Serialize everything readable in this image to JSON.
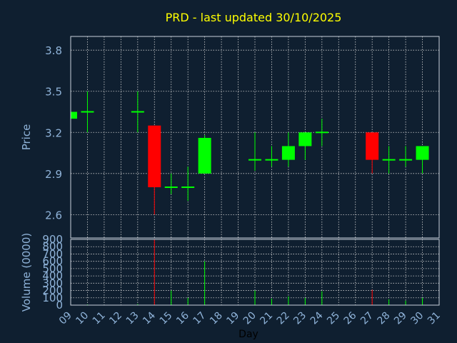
{
  "chart_data": {
    "type": "candlestick",
    "title": "PRD - last updated 30/10/2025",
    "xlabel": "Day",
    "price_panel": {
      "ylabel": "Price",
      "yticks": [
        "2.6",
        "2.9",
        "3.2",
        "3.5",
        "3.8"
      ],
      "ylim": [
        2.43,
        3.9
      ]
    },
    "volume_panel": {
      "ylabel": "Volume (0000)",
      "yticks": [
        "0",
        "100",
        "200",
        "300",
        "400",
        "500",
        "600",
        "700",
        "800",
        "900"
      ],
      "ylim": [
        0,
        900
      ]
    },
    "xticks": [
      "09",
      "10",
      "11",
      "12",
      "13",
      "14",
      "15",
      "16",
      "17",
      "18",
      "19",
      "20",
      "21",
      "22",
      "23",
      "24",
      "25",
      "26",
      "27",
      "28",
      "29",
      "30",
      "31"
    ],
    "grid": true,
    "colors": {
      "background": "#0f1f30",
      "up": "#00ff00",
      "down": "#ff0000",
      "title": "#ffff00",
      "axis_text": "#8fb3d9",
      "frame": "#c8d2dc",
      "grid": "#d0d0d0"
    },
    "candles": [
      {
        "day": 9,
        "open": 3.3,
        "high": 3.35,
        "low": 3.3,
        "close": 3.35,
        "volume": 5
      },
      {
        "day": 10,
        "open": 3.35,
        "high": 3.5,
        "low": 3.2,
        "close": 3.35,
        "volume": 10
      },
      {
        "day": 13,
        "open": 3.35,
        "high": 3.5,
        "low": 3.2,
        "close": 3.35,
        "volume": 15
      },
      {
        "day": 14,
        "open": 3.25,
        "high": 3.25,
        "low": 2.6,
        "close": 2.8,
        "volume": 900
      },
      {
        "day": 15,
        "open": 2.8,
        "high": 2.9,
        "low": 2.75,
        "close": 2.8,
        "volume": 200
      },
      {
        "day": 16,
        "open": 2.8,
        "high": 2.95,
        "low": 2.7,
        "close": 2.8,
        "volume": 100
      },
      {
        "day": 17,
        "open": 2.9,
        "high": 3.18,
        "low": 2.9,
        "close": 3.16,
        "volume": 600
      },
      {
        "day": 20,
        "open": 3.0,
        "high": 3.2,
        "low": 2.92,
        "close": 3.0,
        "volume": 200
      },
      {
        "day": 21,
        "open": 3.0,
        "high": 3.1,
        "low": 2.95,
        "close": 3.0,
        "volume": 90
      },
      {
        "day": 22,
        "open": 3.0,
        "high": 3.2,
        "low": 2.95,
        "close": 3.1,
        "volume": 120
      },
      {
        "day": 23,
        "open": 3.1,
        "high": 3.2,
        "low": 3.0,
        "close": 3.2,
        "volume": 100
      },
      {
        "day": 24,
        "open": 3.2,
        "high": 3.3,
        "low": 3.1,
        "close": 3.2,
        "volume": 190
      },
      {
        "day": 27,
        "open": 3.2,
        "high": 3.2,
        "low": 2.9,
        "close": 3.0,
        "volume": 210
      },
      {
        "day": 28,
        "open": 3.0,
        "high": 3.1,
        "low": 2.9,
        "close": 3.0,
        "volume": 80
      },
      {
        "day": 29,
        "open": 3.0,
        "high": 3.1,
        "low": 2.95,
        "close": 3.0,
        "volume": 60
      },
      {
        "day": 30,
        "open": 3.0,
        "high": 3.1,
        "low": 2.9,
        "close": 3.1,
        "volume": 100
      }
    ]
  }
}
